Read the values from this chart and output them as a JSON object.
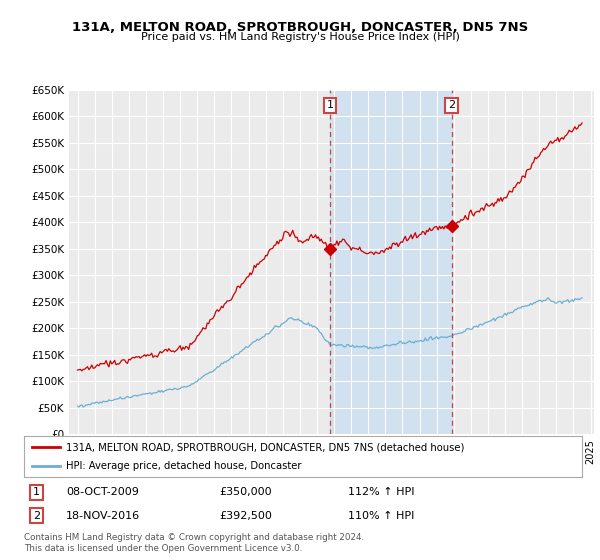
{
  "title": "131A, MELTON ROAD, SPROTBROUGH, DONCASTER, DN5 7NS",
  "subtitle": "Price paid vs. HM Land Registry's House Price Index (HPI)",
  "ylim": [
    0,
    650000
  ],
  "yticks": [
    0,
    50000,
    100000,
    150000,
    200000,
    250000,
    300000,
    350000,
    400000,
    450000,
    500000,
    550000,
    600000,
    650000
  ],
  "ytick_labels": [
    "£0",
    "£50K",
    "£100K",
    "£150K",
    "£200K",
    "£250K",
    "£300K",
    "£350K",
    "£400K",
    "£450K",
    "£500K",
    "£550K",
    "£600K",
    "£650K"
  ],
  "background_color": "#ffffff",
  "plot_bg_color": "#ebebeb",
  "hpi_shade_color": "#cde0f0",
  "vline1_x": 2009.77,
  "vline2_x": 2016.88,
  "sale1_price": 350000,
  "sale2_price": 392500,
  "sale1_date": "08-OCT-2009",
  "sale2_date": "18-NOV-2016",
  "sale1_pct": "112% ↑ HPI",
  "sale2_pct": "110% ↑ HPI",
  "legend_line1": "131A, MELTON ROAD, SPROTBROUGH, DONCASTER, DN5 7NS (detached house)",
  "legend_line2": "HPI: Average price, detached house, Doncaster",
  "footer": "Contains HM Land Registry data © Crown copyright and database right 2024.\nThis data is licensed under the Open Government Licence v3.0.",
  "red_color": "#cc0000",
  "blue_color": "#6baed6",
  "vline_color": "#cc4444",
  "xlim": [
    1994.5,
    2025.2
  ],
  "xtick_start": 1995,
  "xtick_end": 2025
}
